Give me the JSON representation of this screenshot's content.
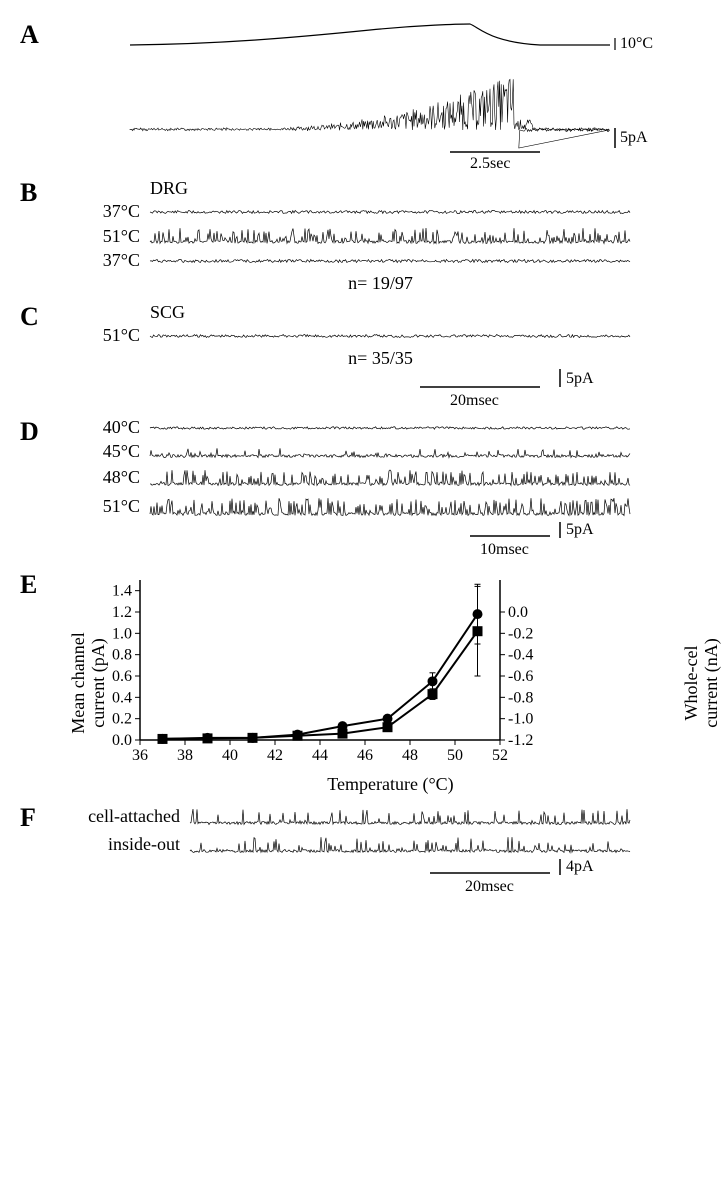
{
  "figure": {
    "background_color": "#ffffff",
    "stroke_color": "#000000",
    "font_family": "Times New Roman",
    "panel_label_fontsize": 26,
    "text_fontsize": 18
  },
  "panelA": {
    "label": "A",
    "temp_scale": "10°C",
    "current_scale": "5pA",
    "time_scale": "2.5sec",
    "temp_trace_color": "#000000",
    "current_trace_color": "#000000"
  },
  "panelB": {
    "label": "B",
    "title": "DRG",
    "rows": [
      {
        "temp": "37°C"
      },
      {
        "temp": "51°C"
      },
      {
        "temp": "37°C"
      }
    ],
    "n_text": "n= 19/97"
  },
  "panelC": {
    "label": "C",
    "title": "SCG",
    "rows": [
      {
        "temp": "51°C"
      }
    ],
    "n_text": "n= 35/35",
    "current_scale": "5pA",
    "time_scale": "20msec"
  },
  "panelD": {
    "label": "D",
    "rows": [
      {
        "temp": "40°C"
      },
      {
        "temp": "45°C"
      },
      {
        "temp": "48°C"
      },
      {
        "temp": "51°C"
      }
    ],
    "current_scale": "5pA",
    "time_scale": "10msec"
  },
  "panelE": {
    "label": "E",
    "type": "line",
    "xlabel": "Temperature (°C)",
    "ylabel_left": "Mean channel\ncurrent (pA)",
    "ylabel_right": "Whole-cel\ncurrent (nA)",
    "x_ticks": [
      36,
      38,
      40,
      42,
      44,
      46,
      48,
      50,
      52
    ],
    "y_left_ticks": [
      0.0,
      0.2,
      0.4,
      0.6,
      0.8,
      1.0,
      1.2,
      1.4
    ],
    "y_right_ticks": [
      0.0,
      -0.2,
      -0.4,
      -0.6,
      -0.8,
      -1.0,
      -1.2
    ],
    "xlim": [
      36,
      52
    ],
    "ylim_left": [
      0,
      1.5
    ],
    "series": [
      {
        "name": "mean-channel",
        "marker": "circle",
        "color": "#000000",
        "line_width": 2,
        "x": [
          37,
          39,
          41,
          43,
          45,
          47,
          49,
          51
        ],
        "y": [
          0.01,
          0.02,
          0.02,
          0.05,
          0.13,
          0.2,
          0.55,
          1.18
        ],
        "yerr": [
          0,
          0,
          0,
          0.01,
          0.02,
          0.03,
          0.08,
          0.28
        ]
      },
      {
        "name": "whole-cell",
        "marker": "square",
        "color": "#000000",
        "line_width": 2,
        "x": [
          37,
          39,
          41,
          43,
          45,
          47,
          49,
          51
        ],
        "y": [
          0.01,
          0.015,
          0.02,
          0.04,
          0.06,
          0.12,
          0.43,
          1.02
        ],
        "yerr": [
          0,
          0,
          0,
          0,
          0.01,
          0.02,
          0.05,
          0.42
        ]
      }
    ],
    "label_fontsize": 18,
    "tick_fontsize": 16,
    "axis_color": "#000000",
    "marker_size": 5
  },
  "panelF": {
    "label": "F",
    "rows": [
      {
        "label": "cell-attached"
      },
      {
        "label": "inside-out"
      }
    ],
    "current_scale": "4pA",
    "time_scale": "20msec"
  }
}
